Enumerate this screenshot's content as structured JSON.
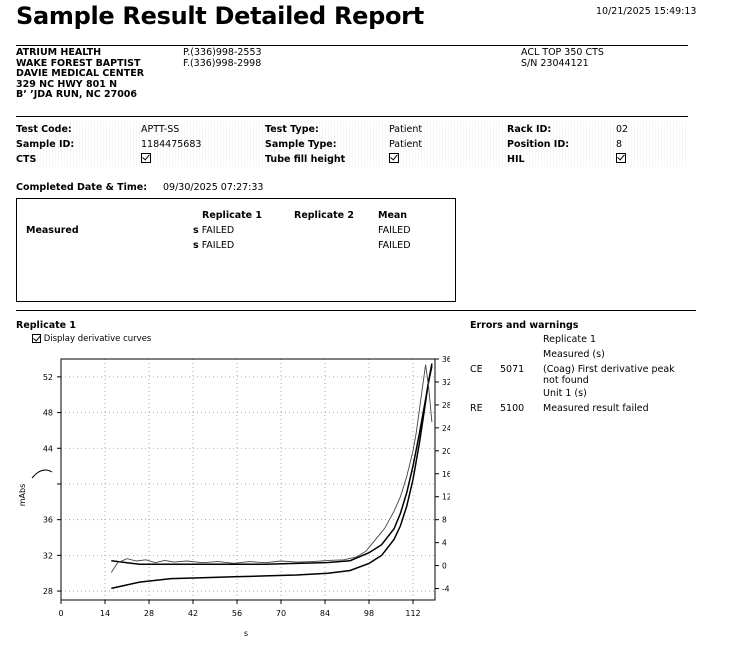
{
  "report": {
    "title": "Sample Result Detailed Report",
    "timestamp": "10/21/2025 15:49:13"
  },
  "facility": {
    "lines": [
      "ATRIUM HEALTH",
      "WAKE FOREST BAPTIST",
      "DAVIE MEDICAL CENTER",
      "329 NC HWY 801 N",
      "B’   ’JDA RUN, NC 27006"
    ],
    "phone": "P.(336)998-2553",
    "fax": "F.(336)998-2998",
    "instrument": "ACL TOP 350 CTS",
    "serial": "S/N 23044121"
  },
  "test_info": {
    "test_code_label": "Test Code:",
    "test_code": "APTT-SS",
    "sample_id_label": "Sample ID:",
    "sample_id": "1184475683",
    "cts_label": "CTS",
    "test_type_label": "Test Type:",
    "test_type": "Patient",
    "sample_type_label": "Sample Type:",
    "sample_type": "Patient",
    "tube_fill_label": "Tube fill height",
    "rack_id_label": "Rack ID:",
    "rack_id": "02",
    "position_id_label": "Position ID:",
    "position_id": "8",
    "hil_label": "HIL"
  },
  "completed": {
    "label": "Completed Date & Time:",
    "value": "09/30/2025 07:27:33"
  },
  "results": {
    "headers": [
      "Replicate 1",
      "Replicate 2",
      "Mean"
    ],
    "row_label": "Measured",
    "rows": [
      {
        "prefix": "s",
        "rep1": "FAILED",
        "mean": "FAILED"
      },
      {
        "prefix": "s",
        "rep1": "FAILED",
        "mean": "FAILED"
      }
    ]
  },
  "graph_section": {
    "title": "Replicate 1",
    "checkbox_label": "Display derivative curves",
    "y_left_label": "mAbs",
    "x_label": "s"
  },
  "errors": {
    "title": "Errors and warnings",
    "replicate": "Replicate 1",
    "measured": "Measured (s)",
    "items": [
      {
        "code": "CE",
        "num": "5071",
        "msg": "(Coag) First derivative peak not found",
        "sub": "Unit 1 (s)"
      },
      {
        "code": "RE",
        "num": "5100",
        "msg": "Measured result failed",
        "sub": ""
      }
    ]
  },
  "chart_data": {
    "type": "line",
    "title": "",
    "xlabel": "s",
    "ylabel": "mAbs",
    "xlim": [
      0,
      119
    ],
    "ylim": [
      27,
      54
    ],
    "y2lim": [
      -6,
      36
    ],
    "x_ticks": [
      "0",
      "14",
      "28",
      "42",
      "56",
      "70",
      "84",
      "98",
      "112"
    ],
    "y_ticks": [
      "28",
      "32",
      "36",
      "",
      "44",
      "48",
      "52"
    ],
    "y_tick_values": [
      28,
      32,
      36,
      40,
      44,
      48,
      52
    ],
    "y2_ticks": [
      "-4",
      "0",
      "4",
      "8",
      "12",
      "16",
      "20",
      "24",
      "28",
      "32",
      "36"
    ],
    "grid": true,
    "series": [
      {
        "axis": "left",
        "x": [
          16,
          25,
          35,
          45,
          55,
          65,
          75,
          85,
          92,
          98,
          102,
          106,
          108,
          110,
          112,
          114,
          115,
          116,
          117,
          118
        ],
        "y": [
          28.3,
          29.0,
          29.4,
          29.5,
          29.6,
          29.7,
          29.8,
          30.0,
          30.3,
          31.1,
          32.0,
          33.8,
          35.3,
          37.5,
          40.5,
          44.5,
          46.8,
          49.2,
          51.6,
          53.5
        ]
      },
      {
        "axis": "left",
        "x": [
          16,
          25,
          35,
          45,
          55,
          65,
          75,
          85,
          92,
          98,
          102,
          106,
          108,
          110,
          112,
          114,
          115,
          116,
          117,
          118
        ],
        "y": [
          31.4,
          31.0,
          31.0,
          31.0,
          31.0,
          31.0,
          31.1,
          31.2,
          31.4,
          32.3,
          33.2,
          35.0,
          36.7,
          39.0,
          42.0,
          45.6,
          47.5,
          49.5,
          51.5,
          53.2
        ]
      },
      {
        "axis": "right",
        "x": [
          16,
          18,
          21,
          24,
          27,
          30,
          33,
          36,
          40,
          45,
          50,
          55,
          60,
          65,
          70,
          75,
          80,
          85,
          90,
          94,
          97,
          100,
          103,
          106,
          108,
          110,
          112,
          113,
          114,
          115,
          116,
          117,
          118
        ],
        "y": [
          -1.2,
          0.5,
          1.2,
          0.8,
          1.0,
          0.5,
          0.9,
          0.6,
          0.8,
          0.5,
          0.7,
          0.4,
          0.7,
          0.5,
          0.8,
          0.6,
          0.7,
          0.9,
          1.0,
          1.5,
          2.5,
          4.5,
          6.5,
          9.5,
          12.0,
          15.5,
          20.0,
          23.0,
          27.0,
          31.0,
          35.0,
          31.0,
          25.0
        ]
      }
    ]
  }
}
